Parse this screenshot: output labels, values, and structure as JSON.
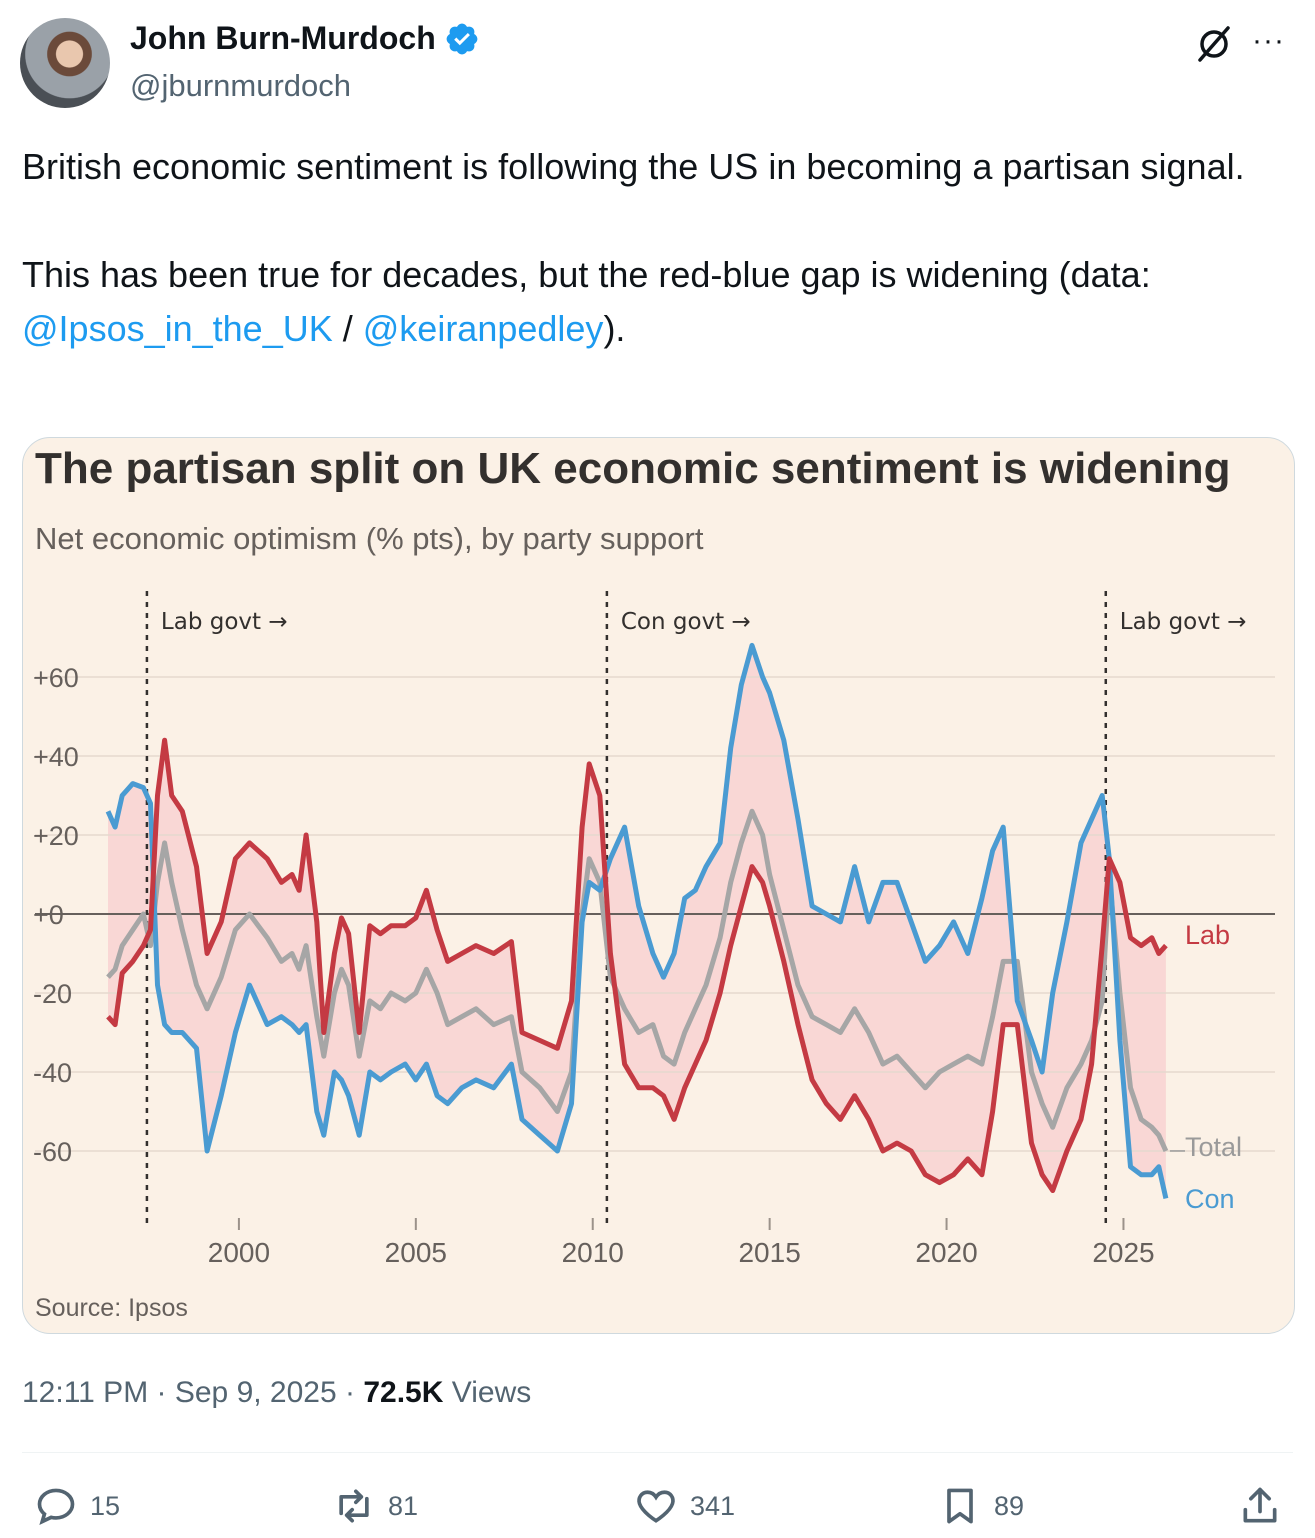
{
  "author": {
    "name": "John Burn-Murdoch",
    "handle": "@jburnmurdoch",
    "verified_icon": "verified-badge-icon"
  },
  "tweet": {
    "line1": "British economic sentiment is following the US in becoming a partisan signal.",
    "line2_prefix": "This has been true for decades, but the red-blue gap is widening (data: ",
    "mention1": "@Ipsos_in_the_UK",
    "sep": " / ",
    "mention2": "@keiranpedley",
    "suffix": ")."
  },
  "meta": {
    "time": "12:11 PM",
    "dot": " · ",
    "date": "Sep 9, 2025",
    "views_count": "72.5K",
    "views_label": "Views"
  },
  "actions": {
    "replies": "15",
    "reposts": "81",
    "likes": "341",
    "bookmarks": "89"
  },
  "colors": {
    "lab": "#c43a43",
    "con": "#4a9bd2",
    "total": "#a6a6a6",
    "band": "#f9d7d5",
    "card_bg": "#fbf1e6",
    "link": "#1d9bf0"
  },
  "chart_data": {
    "type": "line",
    "title": "The partisan split on UK economic sentiment is widening",
    "subtitle": "Net economic optimism (% pts), by party support",
    "source": "Source: Ipsos",
    "y_ticks": [
      "+60",
      "+40",
      "+20",
      "+0",
      "-20",
      "-40",
      "-60"
    ],
    "y_tick_values": [
      60,
      40,
      20,
      0,
      -20,
      -40,
      -60
    ],
    "x_ticks": [
      "2000",
      "2005",
      "2010",
      "2015",
      "2020",
      "2025"
    ],
    "x_tick_values": [
      2000,
      2005,
      2010,
      2015,
      2020,
      2025
    ],
    "xlim": [
      1996.3,
      2026.4
    ],
    "ylim": [
      -79,
      80
    ],
    "annotations": [
      {
        "label": "Lab govt →",
        "x": 1997.4
      },
      {
        "label": "Con govt →",
        "x": 2010.4
      },
      {
        "label": "Lab govt →",
        "x": 2024.5
      }
    ],
    "series": [
      {
        "name": "Lab",
        "points": [
          [
            1996.3,
            -26
          ],
          [
            1996.5,
            -28
          ],
          [
            1996.7,
            -15
          ],
          [
            1997.0,
            -12
          ],
          [
            1997.3,
            -8
          ],
          [
            1997.5,
            -4
          ],
          [
            1997.7,
            30
          ],
          [
            1997.9,
            44
          ],
          [
            1998.1,
            30
          ],
          [
            1998.4,
            26
          ],
          [
            1998.8,
            12
          ],
          [
            1999.1,
            -10
          ],
          [
            1999.5,
            -2
          ],
          [
            1999.9,
            14
          ],
          [
            2000.3,
            18
          ],
          [
            2000.8,
            14
          ],
          [
            2001.2,
            8
          ],
          [
            2001.5,
            10
          ],
          [
            2001.7,
            6
          ],
          [
            2001.9,
            20
          ],
          [
            2002.2,
            -2
          ],
          [
            2002.4,
            -30
          ],
          [
            2002.7,
            -10
          ],
          [
            2002.9,
            -1
          ],
          [
            2003.1,
            -5
          ],
          [
            2003.4,
            -30
          ],
          [
            2003.7,
            -3
          ],
          [
            2004.0,
            -5
          ],
          [
            2004.3,
            -3
          ],
          [
            2004.7,
            -3
          ],
          [
            2005.0,
            -1
          ],
          [
            2005.3,
            6
          ],
          [
            2005.6,
            -4
          ],
          [
            2005.9,
            -12
          ],
          [
            2006.3,
            -10
          ],
          [
            2006.7,
            -8
          ],
          [
            2007.2,
            -10
          ],
          [
            2007.7,
            -7
          ],
          [
            2008.0,
            -30
          ],
          [
            2008.5,
            -32
          ],
          [
            2009.0,
            -34
          ],
          [
            2009.4,
            -22
          ],
          [
            2009.7,
            22
          ],
          [
            2009.9,
            38
          ],
          [
            2010.2,
            30
          ],
          [
            2010.5,
            -10
          ],
          [
            2010.9,
            -38
          ],
          [
            2011.3,
            -44
          ],
          [
            2011.7,
            -44
          ],
          [
            2012.0,
            -46
          ],
          [
            2012.3,
            -52
          ],
          [
            2012.6,
            -44
          ],
          [
            2012.9,
            -38
          ],
          [
            2013.2,
            -32
          ],
          [
            2013.6,
            -20
          ],
          [
            2013.9,
            -8
          ],
          [
            2014.2,
            2
          ],
          [
            2014.5,
            12
          ],
          [
            2014.8,
            8
          ],
          [
            2015.0,
            2
          ],
          [
            2015.4,
            -12
          ],
          [
            2015.8,
            -28
          ],
          [
            2016.2,
            -42
          ],
          [
            2016.6,
            -48
          ],
          [
            2017.0,
            -52
          ],
          [
            2017.4,
            -46
          ],
          [
            2017.8,
            -52
          ],
          [
            2018.2,
            -60
          ],
          [
            2018.6,
            -58
          ],
          [
            2019.0,
            -60
          ],
          [
            2019.4,
            -66
          ],
          [
            2019.8,
            -68
          ],
          [
            2020.2,
            -66
          ],
          [
            2020.6,
            -62
          ],
          [
            2021.0,
            -66
          ],
          [
            2021.3,
            -50
          ],
          [
            2021.6,
            -28
          ],
          [
            2022.0,
            -28
          ],
          [
            2022.4,
            -58
          ],
          [
            2022.7,
            -66
          ],
          [
            2023.0,
            -70
          ],
          [
            2023.4,
            -60
          ],
          [
            2023.8,
            -52
          ],
          [
            2024.1,
            -38
          ],
          [
            2024.4,
            -8
          ],
          [
            2024.6,
            14
          ],
          [
            2024.9,
            8
          ],
          [
            2025.2,
            -6
          ],
          [
            2025.5,
            -8
          ],
          [
            2025.8,
            -6
          ],
          [
            2026.0,
            -10
          ],
          [
            2026.2,
            -8
          ]
        ]
      },
      {
        "name": "Total",
        "points": [
          [
            1996.3,
            -16
          ],
          [
            1996.5,
            -14
          ],
          [
            1996.7,
            -8
          ],
          [
            1997.0,
            -4
          ],
          [
            1997.3,
            0
          ],
          [
            1997.5,
            -8
          ],
          [
            1997.7,
            8
          ],
          [
            1997.9,
            18
          ],
          [
            1998.1,
            8
          ],
          [
            1998.4,
            -4
          ],
          [
            1998.8,
            -18
          ],
          [
            1999.1,
            -24
          ],
          [
            1999.5,
            -16
          ],
          [
            1999.9,
            -4
          ],
          [
            2000.3,
            0
          ],
          [
            2000.8,
            -6
          ],
          [
            2001.2,
            -12
          ],
          [
            2001.5,
            -10
          ],
          [
            2001.7,
            -14
          ],
          [
            2001.9,
            -8
          ],
          [
            2002.2,
            -26
          ],
          [
            2002.4,
            -36
          ],
          [
            2002.7,
            -20
          ],
          [
            2002.9,
            -14
          ],
          [
            2003.1,
            -18
          ],
          [
            2003.4,
            -36
          ],
          [
            2003.7,
            -22
          ],
          [
            2004.0,
            -24
          ],
          [
            2004.3,
            -20
          ],
          [
            2004.7,
            -22
          ],
          [
            2005.0,
            -20
          ],
          [
            2005.3,
            -14
          ],
          [
            2005.6,
            -20
          ],
          [
            2005.9,
            -28
          ],
          [
            2006.3,
            -26
          ],
          [
            2006.7,
            -24
          ],
          [
            2007.2,
            -28
          ],
          [
            2007.7,
            -26
          ],
          [
            2008.0,
            -40
          ],
          [
            2008.5,
            -44
          ],
          [
            2009.0,
            -50
          ],
          [
            2009.4,
            -40
          ],
          [
            2009.7,
            0
          ],
          [
            2009.9,
            14
          ],
          [
            2010.2,
            8
          ],
          [
            2010.5,
            -16
          ],
          [
            2010.9,
            -24
          ],
          [
            2011.3,
            -30
          ],
          [
            2011.7,
            -28
          ],
          [
            2012.0,
            -36
          ],
          [
            2012.3,
            -38
          ],
          [
            2012.6,
            -30
          ],
          [
            2012.9,
            -24
          ],
          [
            2013.2,
            -18
          ],
          [
            2013.6,
            -6
          ],
          [
            2013.9,
            8
          ],
          [
            2014.2,
            18
          ],
          [
            2014.5,
            26
          ],
          [
            2014.8,
            20
          ],
          [
            2015.0,
            10
          ],
          [
            2015.4,
            -4
          ],
          [
            2015.8,
            -18
          ],
          [
            2016.2,
            -26
          ],
          [
            2016.6,
            -28
          ],
          [
            2017.0,
            -30
          ],
          [
            2017.4,
            -24
          ],
          [
            2017.8,
            -30
          ],
          [
            2018.2,
            -38
          ],
          [
            2018.6,
            -36
          ],
          [
            2019.0,
            -40
          ],
          [
            2019.4,
            -44
          ],
          [
            2019.8,
            -40
          ],
          [
            2020.2,
            -38
          ],
          [
            2020.6,
            -36
          ],
          [
            2021.0,
            -38
          ],
          [
            2021.3,
            -26
          ],
          [
            2021.6,
            -12
          ],
          [
            2022.0,
            -12
          ],
          [
            2022.4,
            -40
          ],
          [
            2022.7,
            -48
          ],
          [
            2023.0,
            -54
          ],
          [
            2023.4,
            -44
          ],
          [
            2023.8,
            -38
          ],
          [
            2024.1,
            -32
          ],
          [
            2024.4,
            -22
          ],
          [
            2024.6,
            10
          ],
          [
            2024.9,
            -20
          ],
          [
            2025.2,
            -44
          ],
          [
            2025.5,
            -52
          ],
          [
            2025.8,
            -54
          ],
          [
            2026.0,
            -56
          ],
          [
            2026.2,
            -60
          ]
        ]
      },
      {
        "name": "Con",
        "points": [
          [
            1996.3,
            26
          ],
          [
            1996.5,
            22
          ],
          [
            1996.7,
            30
          ],
          [
            1997.0,
            33
          ],
          [
            1997.3,
            32
          ],
          [
            1997.5,
            28
          ],
          [
            1997.7,
            -18
          ],
          [
            1997.9,
            -28
          ],
          [
            1998.1,
            -30
          ],
          [
            1998.4,
            -30
          ],
          [
            1998.8,
            -34
          ],
          [
            1999.1,
            -60
          ],
          [
            1999.5,
            -46
          ],
          [
            1999.9,
            -30
          ],
          [
            2000.3,
            -18
          ],
          [
            2000.8,
            -28
          ],
          [
            2001.2,
            -26
          ],
          [
            2001.5,
            -28
          ],
          [
            2001.7,
            -30
          ],
          [
            2001.9,
            -28
          ],
          [
            2002.2,
            -50
          ],
          [
            2002.4,
            -56
          ],
          [
            2002.7,
            -40
          ],
          [
            2002.9,
            -42
          ],
          [
            2003.1,
            -46
          ],
          [
            2003.4,
            -56
          ],
          [
            2003.7,
            -40
          ],
          [
            2004.0,
            -42
          ],
          [
            2004.3,
            -40
          ],
          [
            2004.7,
            -38
          ],
          [
            2005.0,
            -42
          ],
          [
            2005.3,
            -38
          ],
          [
            2005.6,
            -46
          ],
          [
            2005.9,
            -48
          ],
          [
            2006.3,
            -44
          ],
          [
            2006.7,
            -42
          ],
          [
            2007.2,
            -44
          ],
          [
            2007.7,
            -38
          ],
          [
            2008.0,
            -52
          ],
          [
            2008.5,
            -56
          ],
          [
            2009.0,
            -60
          ],
          [
            2009.4,
            -48
          ],
          [
            2009.7,
            -2
          ],
          [
            2009.9,
            8
          ],
          [
            2010.2,
            6
          ],
          [
            2010.5,
            14
          ],
          [
            2010.9,
            22
          ],
          [
            2011.3,
            2
          ],
          [
            2011.7,
            -10
          ],
          [
            2012.0,
            -16
          ],
          [
            2012.3,
            -10
          ],
          [
            2012.6,
            4
          ],
          [
            2012.9,
            6
          ],
          [
            2013.2,
            12
          ],
          [
            2013.6,
            18
          ],
          [
            2013.9,
            42
          ],
          [
            2014.2,
            58
          ],
          [
            2014.5,
            68
          ],
          [
            2014.8,
            60
          ],
          [
            2015.0,
            56
          ],
          [
            2015.4,
            44
          ],
          [
            2015.8,
            24
          ],
          [
            2016.2,
            2
          ],
          [
            2016.6,
            0
          ],
          [
            2017.0,
            -2
          ],
          [
            2017.4,
            12
          ],
          [
            2017.8,
            -2
          ],
          [
            2018.2,
            8
          ],
          [
            2018.6,
            8
          ],
          [
            2019.0,
            -2
          ],
          [
            2019.4,
            -12
          ],
          [
            2019.8,
            -8
          ],
          [
            2020.2,
            -2
          ],
          [
            2020.6,
            -10
          ],
          [
            2021.0,
            4
          ],
          [
            2021.3,
            16
          ],
          [
            2021.6,
            22
          ],
          [
            2022.0,
            -22
          ],
          [
            2022.4,
            -32
          ],
          [
            2022.7,
            -40
          ],
          [
            2023.0,
            -20
          ],
          [
            2023.4,
            -2
          ],
          [
            2023.8,
            18
          ],
          [
            2024.1,
            24
          ],
          [
            2024.4,
            30
          ],
          [
            2024.6,
            14
          ],
          [
            2024.9,
            -32
          ],
          [
            2025.2,
            -64
          ],
          [
            2025.5,
            -66
          ],
          [
            2025.8,
            -66
          ],
          [
            2026.0,
            -64
          ],
          [
            2026.2,
            -72
          ]
        ]
      }
    ],
    "end_labels": [
      "Lab",
      "Total",
      "Con"
    ]
  }
}
